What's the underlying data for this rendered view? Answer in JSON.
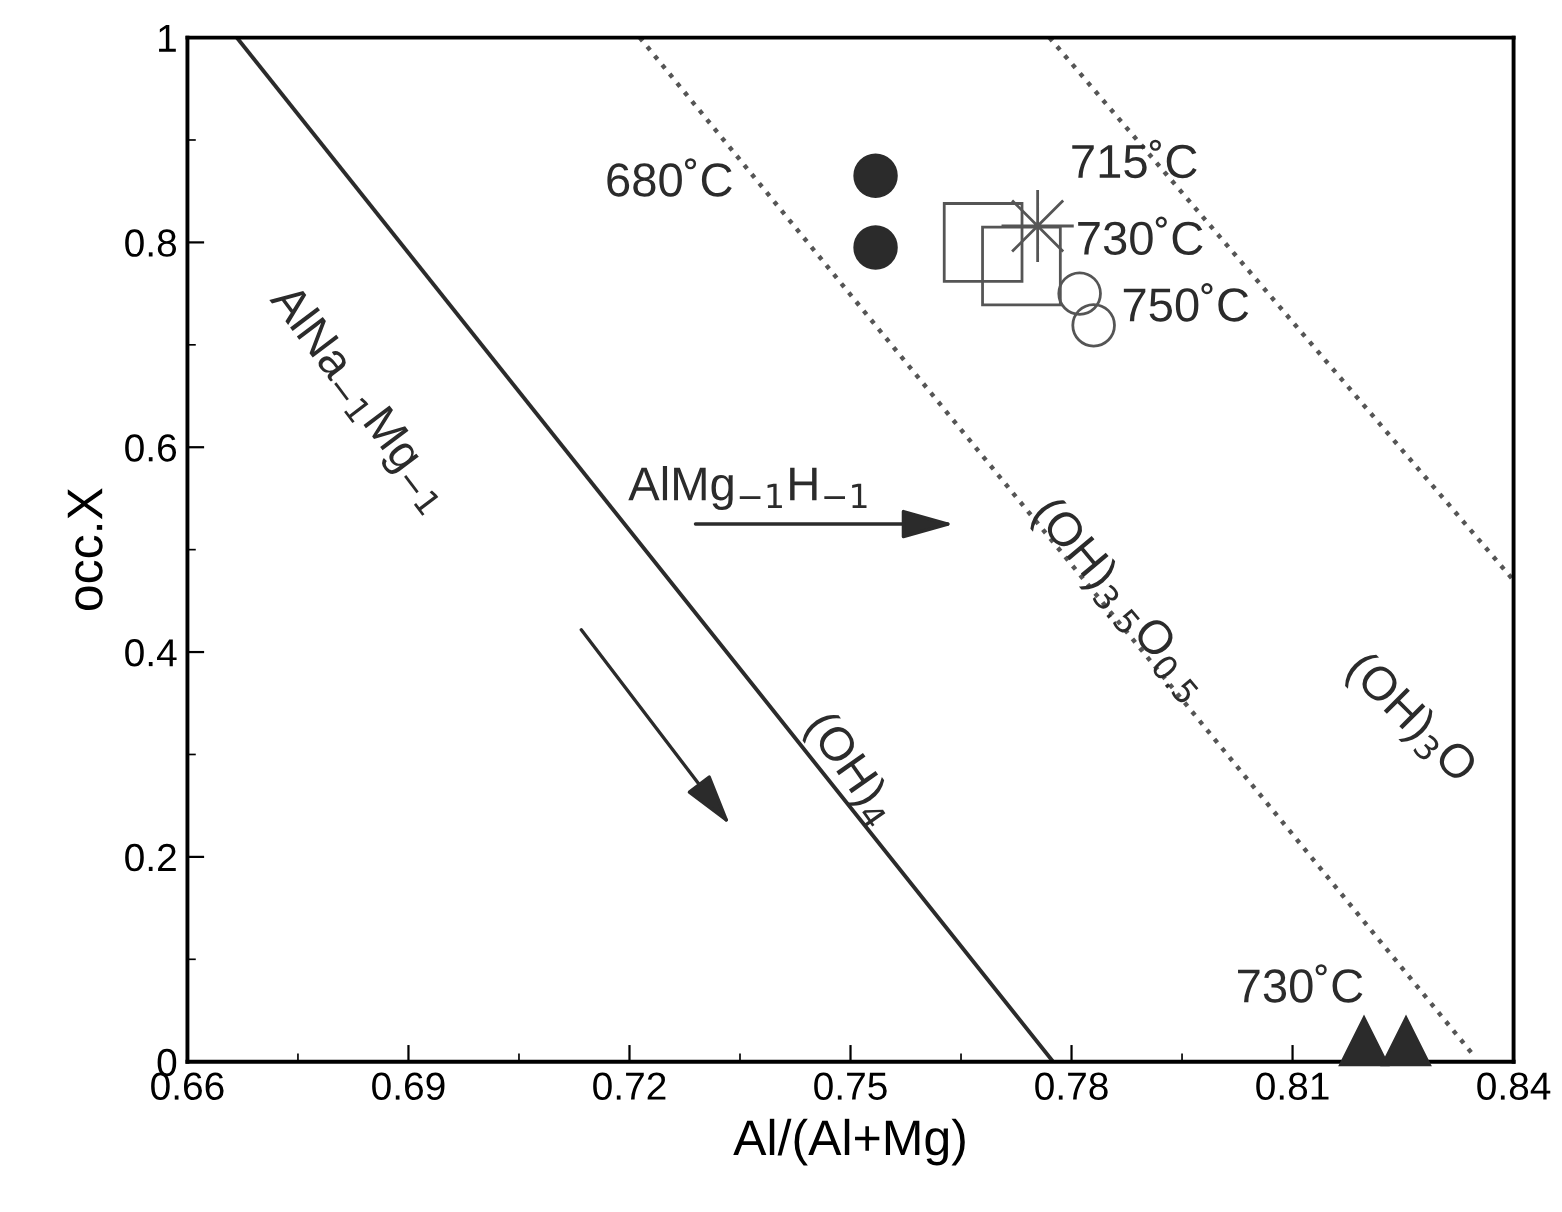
{
  "chart_data": {
    "type": "scatter",
    "xlabel": "Al/(Al+Mg)",
    "ylabel": "occ.X",
    "xlim": [
      0.66,
      0.84
    ],
    "ylim": [
      0,
      1
    ],
    "xticks": [
      0.66,
      0.69,
      0.72,
      0.75,
      0.78,
      0.81,
      0.84
    ],
    "yticks": [
      0,
      0.2,
      0.4,
      0.6,
      0.8,
      1
    ],
    "grid": false,
    "legend": false,
    "series": [
      {
        "type": "line",
        "line_style": "solid",
        "marker": "none",
        "color": "#2b2b2b",
        "x": [
          0.6667,
          0.7775
        ],
        "values": [
          1,
          0
        ]
      },
      {
        "type": "line",
        "line_style": "dotted",
        "marker": "none",
        "color": "#555555",
        "x": [
          0.7214,
          0.8346
        ],
        "values": [
          1,
          0.006
        ]
      },
      {
        "type": "line",
        "line_style": "dotted",
        "marker": "none",
        "color": "#555555",
        "x": [
          0.777,
          0.84
        ],
        "values": [
          1,
          0.47
        ]
      },
      {
        "marker": "circle",
        "color": "#2b2b2b",
        "x": [
          0.7534,
          0.7534
        ],
        "values": [
          0.865,
          0.795
        ]
      },
      {
        "marker": "square",
        "color": "#555555",
        "x": [
          0.768,
          0.7732
        ],
        "values": [
          0.8,
          0.777
        ]
      },
      {
        "marker": "star",
        "color": "#555555",
        "x": [
          0.7754
        ],
        "values": [
          0.816
        ]
      },
      {
        "marker": "circle",
        "color": "#555555",
        "x": [
          0.7811,
          0.783
        ],
        "values": [
          0.75,
          0.719
        ]
      },
      {
        "marker": "triangle",
        "color": "#2b2b2b",
        "x": [
          0.8197,
          0.8254
        ],
        "values": [
          0.02,
          0.02
        ]
      }
    ],
    "annotations": [
      "680˚C",
      "715˚C",
      "730˚C",
      "750˚C",
      "730˚C",
      "AlNa$_{−1}$Mg$_{−1}$",
      "AlMg$_{−1}$H$_{−1}$",
      "(OH)$_{4}$",
      "(OH)$_{3.5}$O$_{0.5}$",
      "(OH)$_{3}$O"
    ]
  }
}
